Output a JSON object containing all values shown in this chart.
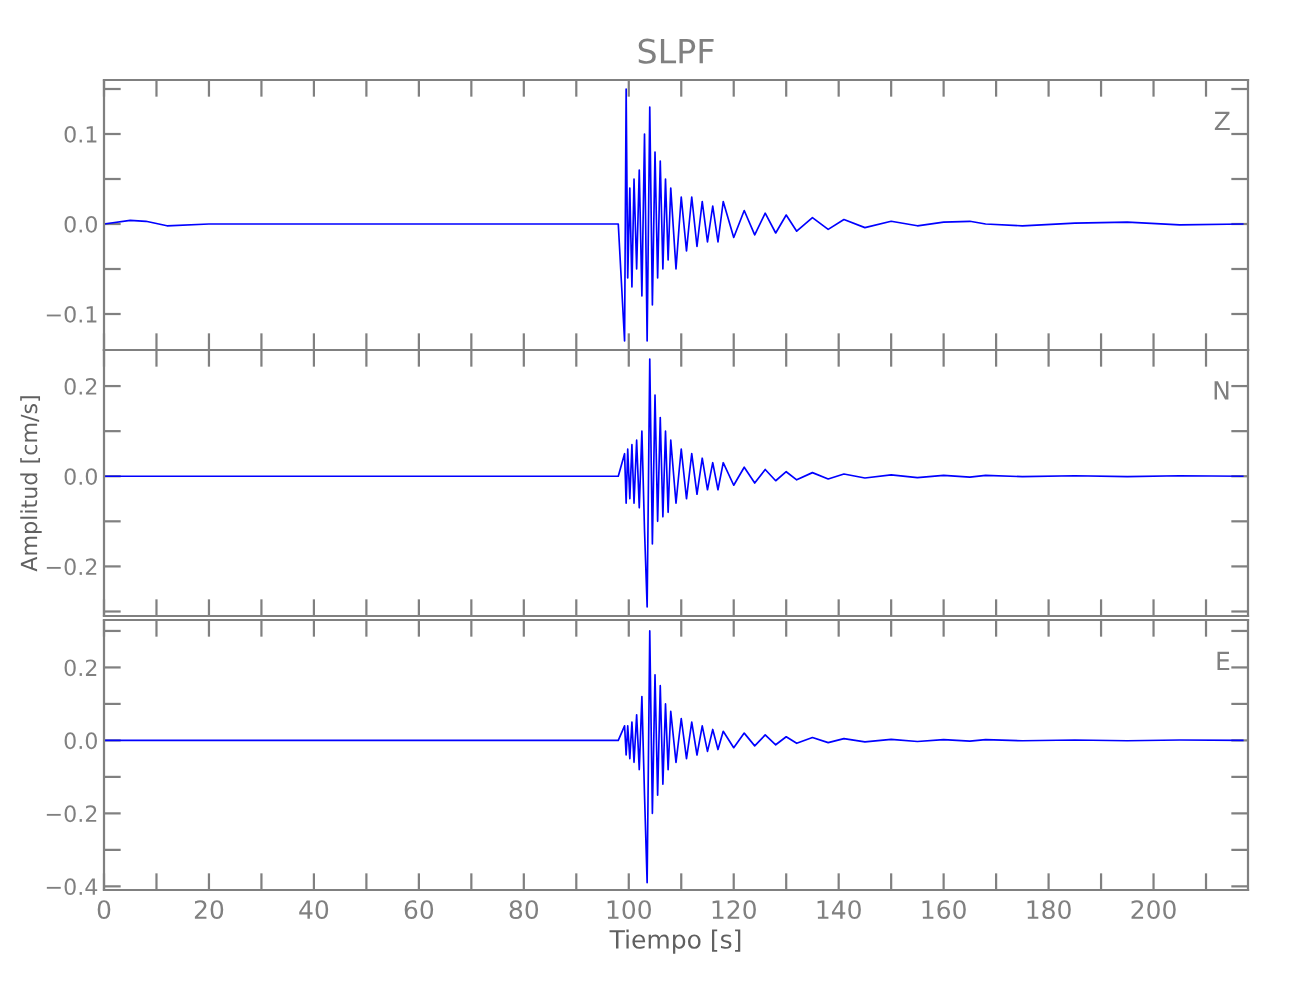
{
  "chart_data": [
    {
      "type": "line",
      "title": "SLPF",
      "tick_labels": "y",
      "xlim": [
        0,
        218
      ],
      "ylim": [
        -0.14,
        0.16
      ],
      "xticks": [
        0,
        {
          "value": 10,
          "label": null
        },
        20,
        {
          "value": 30,
          "label": null
        },
        40,
        {
          "value": 50,
          "label": null
        },
        60,
        {
          "value": 70,
          "label": null
        },
        80,
        {
          "value": 90,
          "label": null
        },
        100,
        {
          "value": 110,
          "label": null
        },
        120,
        {
          "value": 130,
          "label": null
        },
        140,
        {
          "value": 150,
          "label": null
        },
        160,
        {
          "value": 170,
          "label": null
        },
        180,
        {
          "value": 190,
          "label": null
        },
        200,
        {
          "value": 210,
          "label": null
        }
      ],
      "yticks": [
        {
          "value": -0.1,
          "label": "−0.1"
        },
        {
          "value": -0.05,
          "label": null
        },
        {
          "value": 0,
          "label": "0.0"
        },
        {
          "value": 0.05,
          "label": null
        },
        {
          "value": 0.1,
          "label": "0.1"
        },
        {
          "value": 0.15,
          "label": null
        }
      ],
      "series": [
        {
          "name": "Z",
          "color": "#0000ff",
          "x": [
            0,
            5,
            8,
            12,
            20,
            40,
            60,
            80,
            98,
            99.2,
            99.5,
            99.8,
            100.2,
            100.6,
            101,
            101.5,
            102,
            102.5,
            103,
            103.5,
            104,
            104.5,
            105,
            105.5,
            106,
            106.5,
            107,
            107.5,
            108,
            109,
            110,
            111,
            112,
            113,
            114,
            115,
            116,
            117,
            118,
            120,
            122,
            124,
            126,
            128,
            130,
            132,
            135,
            138,
            141,
            145,
            150,
            155,
            160,
            165,
            168,
            175,
            185,
            195,
            205,
            217
          ],
          "values": [
            0,
            0.004,
            0.003,
            -0.002,
            0,
            0,
            0,
            0,
            0,
            -0.13,
            0.15,
            -0.06,
            0.04,
            -0.07,
            0.05,
            -0.05,
            0.06,
            -0.08,
            0.1,
            -0.13,
            0.13,
            -0.09,
            0.08,
            -0.06,
            0.07,
            -0.05,
            0.05,
            -0.04,
            0.04,
            -0.05,
            0.03,
            -0.03,
            0.03,
            -0.025,
            0.025,
            -0.02,
            0.02,
            -0.02,
            0.025,
            -0.015,
            0.015,
            -0.012,
            0.012,
            -0.01,
            0.01,
            -0.008,
            0.007,
            -0.006,
            0.005,
            -0.004,
            0.003,
            -0.002,
            0.002,
            0.003,
            0,
            -0.002,
            0.001,
            0.002,
            -0.001,
            0
          ]
        }
      ]
    },
    {
      "type": "line",
      "ylabel": "Amplitud [cm/s]",
      "tick_labels": "y",
      "xlim": [
        0,
        218
      ],
      "ylim": [
        -0.31,
        0.28
      ],
      "xticks": [
        0,
        {
          "value": 10,
          "label": null
        },
        20,
        {
          "value": 30,
          "label": null
        },
        40,
        {
          "value": 50,
          "label": null
        },
        60,
        {
          "value": 70,
          "label": null
        },
        80,
        {
          "value": 90,
          "label": null
        },
        100,
        {
          "value": 110,
          "label": null
        },
        120,
        {
          "value": 130,
          "label": null
        },
        140,
        {
          "value": 150,
          "label": null
        },
        160,
        {
          "value": 170,
          "label": null
        },
        180,
        {
          "value": 190,
          "label": null
        },
        200,
        {
          "value": 210,
          "label": null
        }
      ],
      "yticks": [
        {
          "value": -0.3,
          "label": null
        },
        {
          "value": -0.2,
          "label": "−0.2"
        },
        {
          "value": -0.1,
          "label": null
        },
        {
          "value": 0,
          "label": "0.0"
        },
        {
          "value": 0.1,
          "label": null
        },
        {
          "value": 0.2,
          "label": "0.2"
        }
      ],
      "series": [
        {
          "name": "N",
          "color": "#0000ff",
          "x": [
            0,
            5,
            8,
            12,
            20,
            40,
            60,
            80,
            98,
            99.2,
            99.5,
            99.8,
            100.2,
            100.6,
            101,
            101.5,
            102,
            102.5,
            103,
            103.5,
            104,
            104.5,
            105,
            105.5,
            106,
            106.5,
            107,
            107.5,
            108,
            109,
            110,
            111,
            112,
            113,
            114,
            115,
            116,
            117,
            118,
            120,
            122,
            124,
            126,
            128,
            130,
            132,
            135,
            138,
            141,
            145,
            150,
            155,
            160,
            165,
            168,
            175,
            185,
            195,
            205,
            217
          ],
          "values": [
            0,
            0,
            0,
            0,
            0,
            0,
            0,
            0,
            0,
            0.05,
            -0.06,
            0.06,
            -0.05,
            0.07,
            -0.06,
            0.08,
            -0.07,
            0.1,
            -0.12,
            -0.29,
            0.26,
            -0.15,
            0.18,
            -0.1,
            0.13,
            -0.09,
            0.1,
            -0.08,
            0.08,
            -0.06,
            0.06,
            -0.05,
            0.05,
            -0.04,
            0.04,
            -0.03,
            0.03,
            -0.03,
            0.03,
            -0.02,
            0.02,
            -0.015,
            0.015,
            -0.01,
            0.01,
            -0.008,
            0.008,
            -0.006,
            0.005,
            -0.004,
            0.003,
            -0.003,
            0.002,
            -0.002,
            0.002,
            -0.001,
            0.001,
            -0.001,
            0.001,
            0
          ]
        }
      ]
    },
    {
      "type": "line",
      "xlabel": "Tiempo [s]",
      "xlim": [
        0,
        218
      ],
      "ylim": [
        -0.41,
        0.33
      ],
      "xticks": [
        0,
        {
          "value": 10,
          "label": null
        },
        20,
        {
          "value": 30,
          "label": null
        },
        40,
        {
          "value": 50,
          "label": null
        },
        60,
        {
          "value": 70,
          "label": null
        },
        80,
        {
          "value": 90,
          "label": null
        },
        100,
        {
          "value": 110,
          "label": null
        },
        120,
        {
          "value": 130,
          "label": null
        },
        140,
        {
          "value": 150,
          "label": null
        },
        160,
        {
          "value": 170,
          "label": null
        },
        180,
        {
          "value": 190,
          "label": null
        },
        200,
        {
          "value": 210,
          "label": null
        }
      ],
      "yticks": [
        {
          "value": -0.4,
          "label": "−0.4"
        },
        {
          "value": -0.3,
          "label": null
        },
        {
          "value": -0.2,
          "label": "−0.2"
        },
        {
          "value": -0.1,
          "label": null
        },
        {
          "value": 0,
          "label": "0.0"
        },
        {
          "value": 0.1,
          "label": null
        },
        {
          "value": 0.2,
          "label": "0.2"
        },
        {
          "value": 0.3,
          "label": null
        }
      ],
      "series": [
        {
          "name": "E",
          "color": "#0000ff",
          "x": [
            0,
            5,
            8,
            12,
            20,
            40,
            60,
            80,
            98,
            99.2,
            99.5,
            99.8,
            100.2,
            100.6,
            101,
            101.5,
            102,
            102.5,
            103,
            103.5,
            104,
            104.5,
            105,
            105.5,
            106,
            106.5,
            107,
            107.5,
            108,
            109,
            110,
            111,
            112,
            113,
            114,
            115,
            116,
            117,
            118,
            120,
            122,
            124,
            126,
            128,
            130,
            132,
            135,
            138,
            141,
            145,
            150,
            155,
            160,
            165,
            168,
            175,
            185,
            195,
            205,
            217
          ],
          "values": [
            0,
            0,
            0,
            0,
            0,
            0,
            0,
            0,
            0,
            0.04,
            -0.04,
            0.04,
            -0.05,
            0.05,
            -0.06,
            0.07,
            -0.08,
            0.12,
            -0.15,
            -0.39,
            0.3,
            -0.2,
            0.18,
            -0.15,
            0.15,
            -0.12,
            0.1,
            -0.08,
            0.08,
            -0.06,
            0.06,
            -0.05,
            0.05,
            -0.04,
            0.04,
            -0.03,
            0.03,
            -0.025,
            0.025,
            -0.02,
            0.02,
            -0.015,
            0.015,
            -0.012,
            0.01,
            -0.008,
            0.008,
            -0.006,
            0.005,
            -0.004,
            0.003,
            -0.003,
            0.002,
            -0.002,
            0.002,
            -0.001,
            0.001,
            -0.001,
            0.001,
            0
          ]
        }
      ]
    }
  ]
}
